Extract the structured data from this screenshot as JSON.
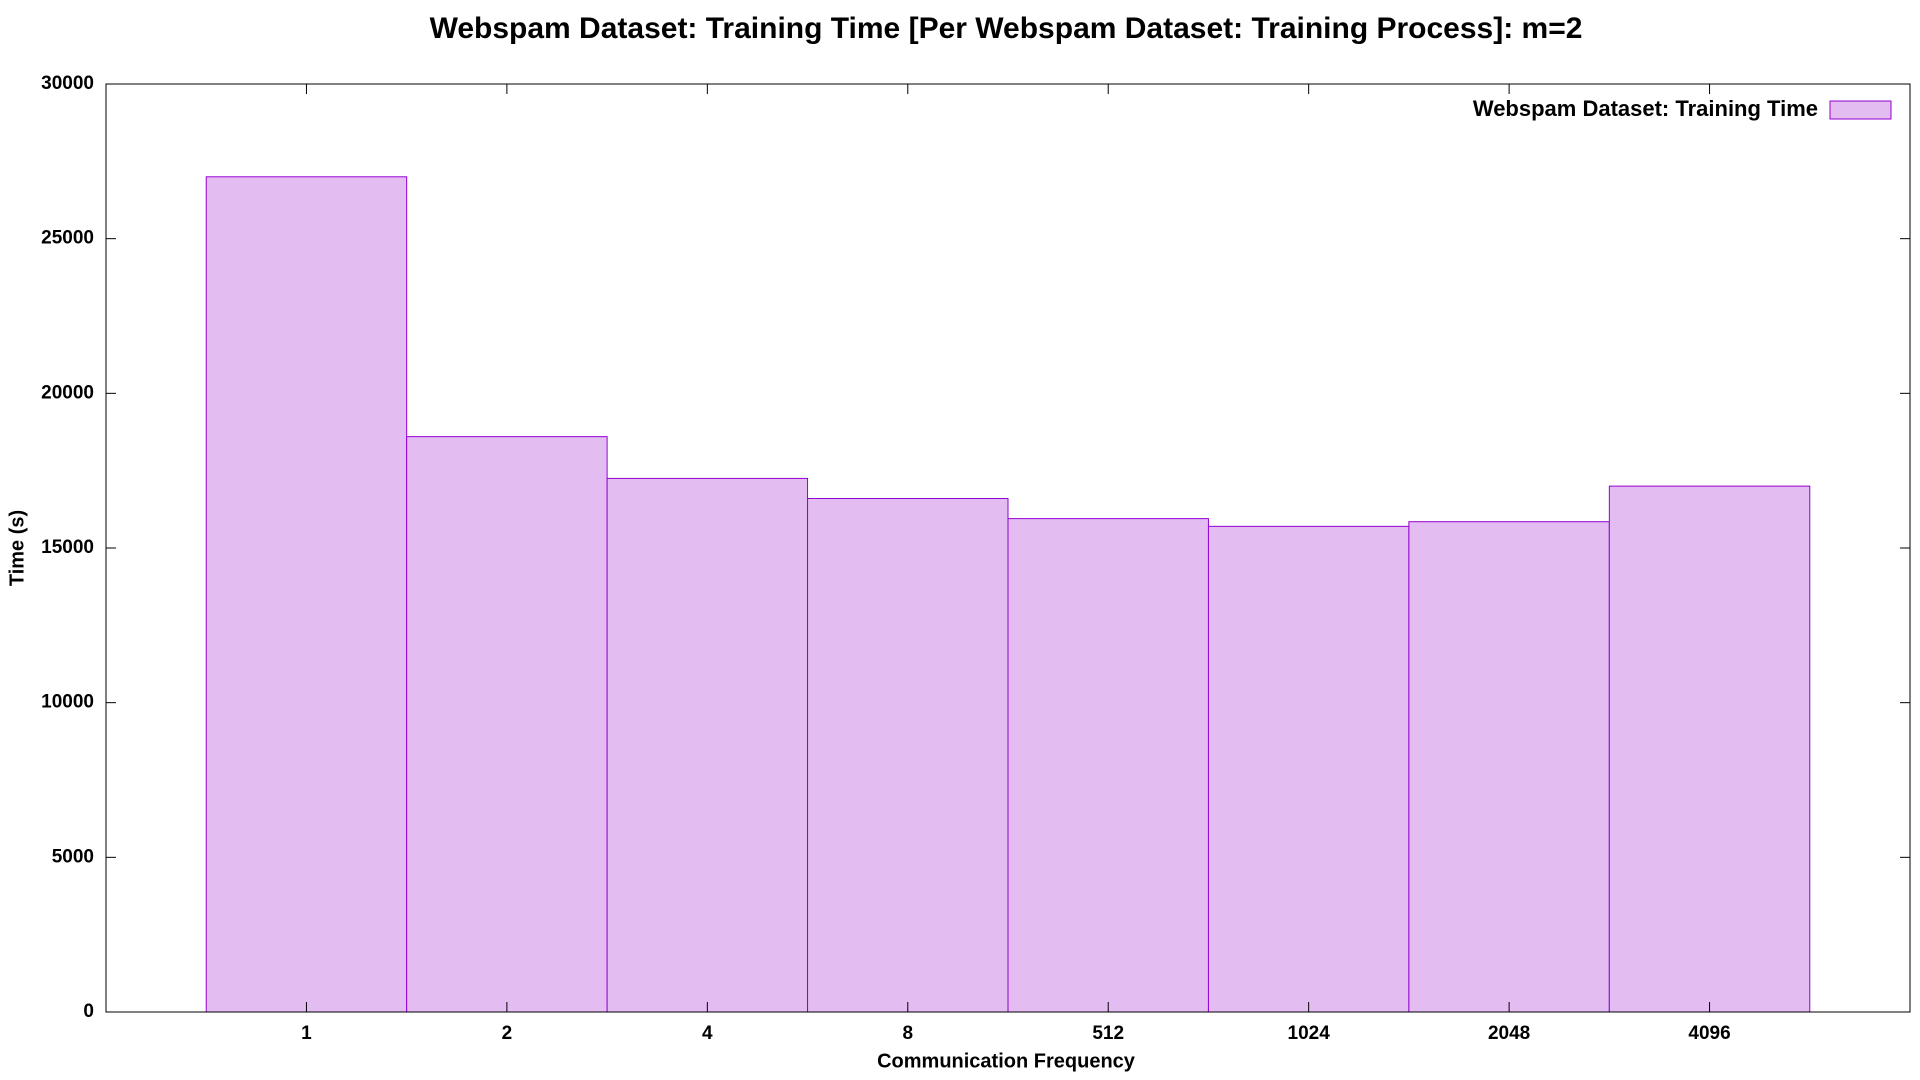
{
  "chart_data": {
    "type": "bar",
    "title": "Webspam Dataset: Training Time [Per Webspam Dataset: Training Process]: m=2",
    "x_label": "Communication Frequency",
    "y_label": "Time (s)",
    "categories": [
      "1",
      "2",
      "4",
      "8",
      "512",
      "1024",
      "2048",
      "4096"
    ],
    "series": [
      {
        "name": "Webspam Dataset: Training Time",
        "color": "#e3bdf2",
        "edge_color": "#9400d3",
        "values": [
          27000,
          18600,
          17250,
          16600,
          15950,
          15700,
          15850,
          17000
        ]
      }
    ],
    "ylim": [
      0,
      30000
    ],
    "yticks": [
      0,
      5000,
      10000,
      15000,
      20000,
      25000,
      30000
    ],
    "grid": false,
    "legend": "top-right"
  }
}
